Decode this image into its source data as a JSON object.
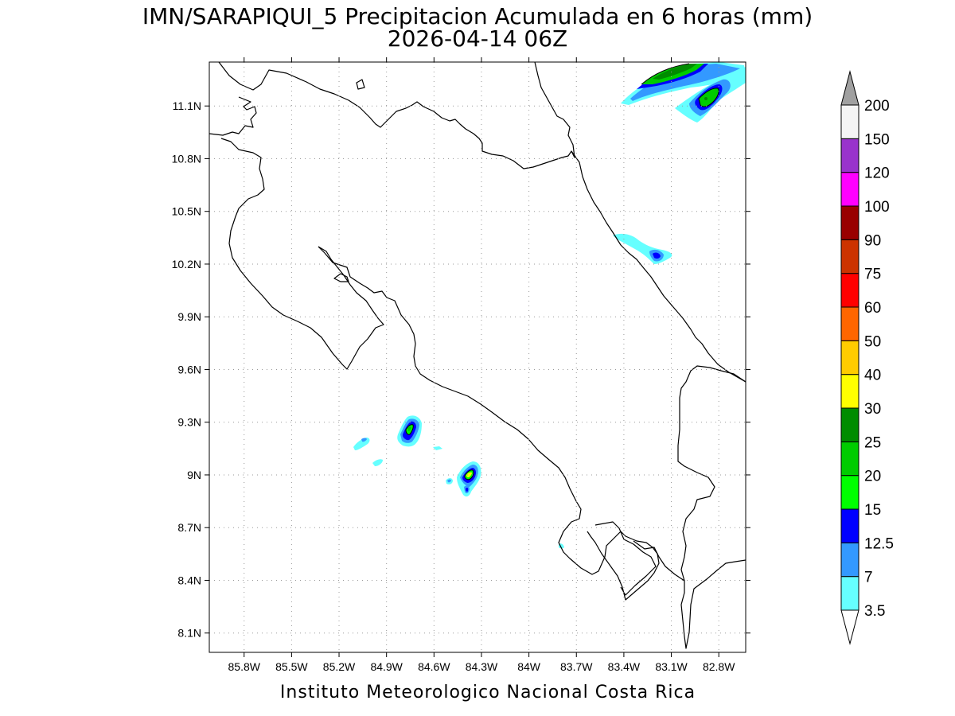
{
  "title": {
    "line1": "IMN/SARAPIQUI_5 Precipitacion Acumulada en 6 horas (mm)",
    "line2": "2026-04-14 06Z"
  },
  "footer": "Instituto Meteorologico Nacional Costa Rica",
  "map": {
    "lon_range": [
      -86.02,
      -82.63
    ],
    "lat_range": [
      7.99,
      11.35
    ],
    "x_ticks": [
      {
        "lon": -85.8,
        "label": "85.8W"
      },
      {
        "lon": -85.5,
        "label": "85.5W"
      },
      {
        "lon": -85.2,
        "label": "85.2W"
      },
      {
        "lon": -84.9,
        "label": "84.9W"
      },
      {
        "lon": -84.6,
        "label": "84.6W"
      },
      {
        "lon": -84.3,
        "label": "84.3W"
      },
      {
        "lon": -84.0,
        "label": "84W"
      },
      {
        "lon": -83.7,
        "label": "83.7W"
      },
      {
        "lon": -83.4,
        "label": "83.4W"
      },
      {
        "lon": -83.1,
        "label": "83.1W"
      },
      {
        "lon": -82.8,
        "label": "82.8W"
      }
    ],
    "y_ticks": [
      {
        "lat": 8.1,
        "label": "8.1N"
      },
      {
        "lat": 8.4,
        "label": "8.4N"
      },
      {
        "lat": 8.7,
        "label": "8.7N"
      },
      {
        "lat": 9.0,
        "label": "9N"
      },
      {
        "lat": 9.3,
        "label": "9.3N"
      },
      {
        "lat": 9.6,
        "label": "9.6N"
      },
      {
        "lat": 9.9,
        "label": "9.9N"
      },
      {
        "lat": 10.2,
        "label": "10.2N"
      },
      {
        "lat": 10.5,
        "label": "10.5N"
      },
      {
        "lat": 10.8,
        "label": "10.8N"
      },
      {
        "lat": 11.1,
        "label": "11.1N"
      }
    ],
    "gridlines": "dotted"
  },
  "colorbar": {
    "levels": [
      {
        "label": "3.5",
        "color": "#66ffff"
      },
      {
        "label": "7",
        "color": "#3399ff"
      },
      {
        "label": "12.5",
        "color": "#0000ff"
      },
      {
        "label": "15",
        "color": "#00ff00"
      },
      {
        "label": "20",
        "color": "#00cc00"
      },
      {
        "label": "25",
        "color": "#008c00"
      },
      {
        "label": "30",
        "color": "#ffff00"
      },
      {
        "label": "40",
        "color": "#ffcc00"
      },
      {
        "label": "50",
        "color": "#ff6600"
      },
      {
        "label": "60",
        "color": "#ff0000"
      },
      {
        "label": "75",
        "color": "#cc3300"
      },
      {
        "label": "90",
        "color": "#990000"
      },
      {
        "label": "100",
        "color": "#ff00ff"
      },
      {
        "label": "120",
        "color": "#9933cc"
      },
      {
        "label": "150",
        "color": "#f4f4f4"
      },
      {
        "label": "200",
        "color": "#a0a0a0"
      }
    ],
    "below_color": "#ffffff",
    "above_color": "#a0a0a0"
  },
  "precip_cells": [
    {
      "name": "precip-cell-caribbean-north",
      "lon": -82.98,
      "lat": 11.25,
      "peak_mm": 25
    },
    {
      "name": "precip-cell-caribbean-offshore",
      "lon": -82.79,
      "lat": 11.1,
      "peak_mm": 20
    },
    {
      "name": "precip-cell-limon-coast",
      "lon": -83.1,
      "lat": 10.22,
      "peak_mm": 12.5
    },
    {
      "name": "precip-cell-nicoya-gulf",
      "lon": -84.66,
      "lat": 9.22,
      "peak_mm": 20
    },
    {
      "name": "precip-cell-central-pacific",
      "lon": -84.3,
      "lat": 9.0,
      "peak_mm": 30
    },
    {
      "name": "precip-cell-west-small",
      "lon": -85.02,
      "lat": 9.18,
      "peak_mm": 3.5
    },
    {
      "name": "precip-cell-west-small-2",
      "lon": -84.89,
      "lat": 9.06,
      "peak_mm": 3.5
    },
    {
      "name": "precip-cell-osa-small",
      "lon": -83.72,
      "lat": 8.57,
      "peak_mm": 3.5
    }
  ]
}
